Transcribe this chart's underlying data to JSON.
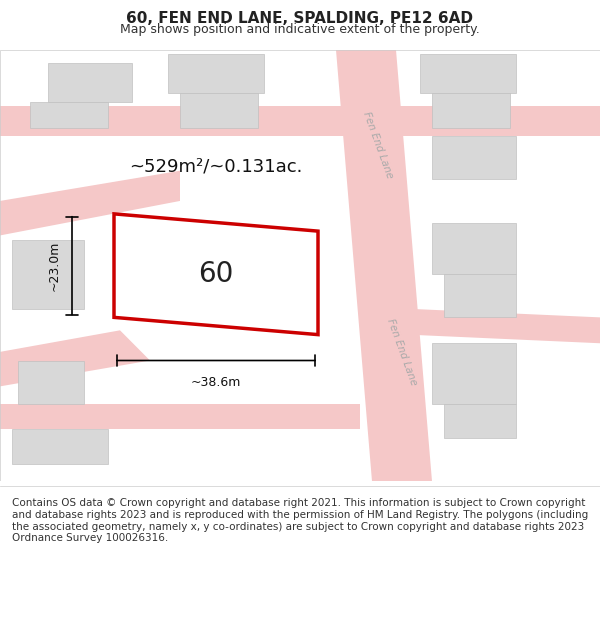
{
  "title": "60, FEN END LANE, SPALDING, PE12 6AD",
  "subtitle": "Map shows position and indicative extent of the property.",
  "footer": "Contains OS data © Crown copyright and database right 2021. This information is subject to Crown copyright and database rights 2023 and is reproduced with the permission of HM Land Registry. The polygons (including the associated geometry, namely x, y co-ordinates) are subject to Crown copyright and database rights 2023 Ordnance Survey 100026316.",
  "map_bg": "#f2f0ed",
  "road_color": "#f5c8c8",
  "building_fill": "#d8d8d8",
  "building_outline": "#c0c0c0",
  "property_color": "#cc0000",
  "property_label": "60",
  "area_text": "~529m²/~0.131ac.",
  "dim_width": "~38.6m",
  "dim_height": "~23.0m",
  "road_label_1": "Fen End Lane",
  "road_label_2": "Fen End Lane",
  "title_fontsize": 11,
  "subtitle_fontsize": 9,
  "footer_fontsize": 7.5
}
